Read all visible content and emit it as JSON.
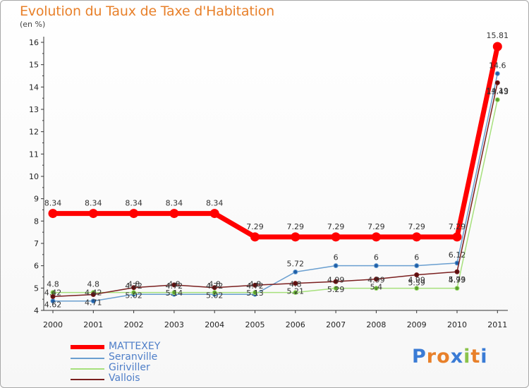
{
  "title": "Evolution du Taux de Taxe d'Habitation",
  "subtitle": "(en %)",
  "brand": {
    "letters": [
      "P",
      "r",
      "o",
      "x",
      "i",
      "t",
      "i"
    ],
    "colors": [
      "#3a7bd5",
      "#e8802a",
      "#e8802a",
      "#3a7bd5",
      "#8bc34a",
      "#e8802a",
      "#3a7bd5"
    ]
  },
  "chart_data": {
    "type": "line",
    "title": "Evolution du Taux de Taxe d'Habitation",
    "ylabel": "(en %)",
    "xlabel": "",
    "x": [
      "2000",
      "2001",
      "2002",
      "2003",
      "2004",
      "2005",
      "2006",
      "2007",
      "2008",
      "2009",
      "2010",
      "2011"
    ],
    "ylim": [
      4,
      16
    ],
    "yticks": [
      "4",
      "5",
      "6",
      "7",
      "8",
      "9",
      "10",
      "11",
      "12",
      "13",
      "14",
      "15",
      "16"
    ],
    "legend_position": "bottom-left",
    "grid": false,
    "series": [
      {
        "name": "MATTEXEY",
        "color": "#ff0000",
        "values": [
          8.34,
          8.34,
          8.34,
          8.34,
          8.34,
          7.29,
          7.29,
          7.29,
          7.29,
          7.29,
          7.29,
          15.81
        ],
        "labels": [
          "8.34",
          "8.34",
          "8.34",
          "8.34",
          "8.34",
          "7.29",
          "7.29",
          "7.29",
          "7.29",
          "7.29",
          "7.29",
          "15.81"
        ]
      },
      {
        "name": "Seranville",
        "color": "#6a9fd0",
        "values": [
          4.42,
          4.42,
          4.72,
          4.72,
          4.72,
          4.72,
          5.72,
          6,
          6,
          6,
          6.12,
          14.6
        ],
        "labels": [
          "4.42",
          "4.42",
          "4.72",
          "4.72",
          "4.72",
          "4.72",
          "5.72",
          "6",
          "6",
          "6",
          "6.12",
          "14.6"
        ]
      },
      {
        "name": "Giriviller",
        "color": "#a6e07c",
        "values": [
          4.8,
          4.8,
          4.8,
          4.8,
          4.8,
          4.8,
          4.8,
          4.99,
          4.99,
          4.99,
          4.99,
          13.43
        ],
        "labels": [
          "4.8",
          "4.8",
          "4.8",
          "4.8",
          "4.8",
          "4.8",
          "4.8",
          "4.99",
          "4.99",
          "4.99",
          "4.99",
          "13.43"
        ]
      },
      {
        "name": "Vallois",
        "color": "#7a1f1f",
        "values": [
          4.62,
          4.71,
          5.02,
          5.14,
          5.02,
          5.13,
          5.21,
          5.29,
          5.4,
          5.59,
          5.73,
          14.19
        ],
        "labels": [
          "4.62",
          "4.71",
          "5.02",
          "5.14",
          "5.02",
          "5.13",
          "5.21",
          "5.29",
          "5.4",
          "5.59",
          "5.73",
          "14.19"
        ]
      }
    ]
  }
}
